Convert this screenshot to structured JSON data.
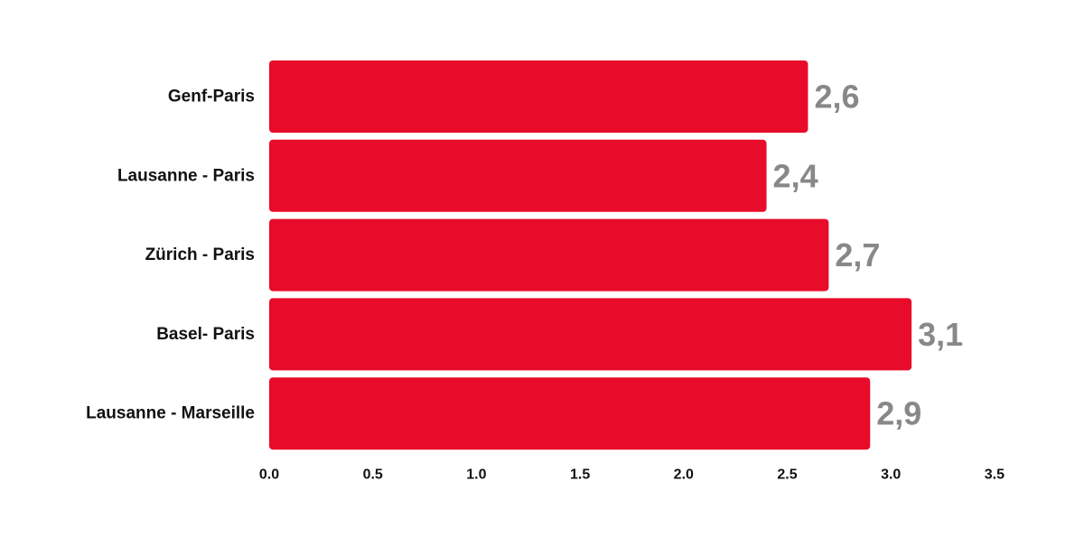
{
  "chart_data": {
    "type": "bar",
    "orientation": "horizontal",
    "categories": [
      "Genf-Paris",
      "Lausanne - Paris",
      "Zürich - Paris",
      "Basel- Paris",
      "Lausanne - Marseille"
    ],
    "values": [
      2.6,
      2.4,
      2.7,
      3.1,
      2.9
    ],
    "value_labels": [
      "2,6",
      "2,4",
      "2,7",
      "3,1",
      "2,9"
    ],
    "x_ticks": [
      0.0,
      0.5,
      1.0,
      1.5,
      2.0,
      2.5,
      3.0,
      3.5
    ],
    "x_tick_labels": [
      "0.0",
      "0.5",
      "1.0",
      "1.5",
      "2.0",
      "2.5",
      "3.0",
      "3.5"
    ],
    "xlim": [
      0,
      3.5
    ],
    "title": "",
    "xlabel": "",
    "ylabel": "",
    "grid": false,
    "colors": {
      "bar": "#e80c2a",
      "value_label": "#888888",
      "text": "#111111",
      "axis": "#111111"
    }
  }
}
